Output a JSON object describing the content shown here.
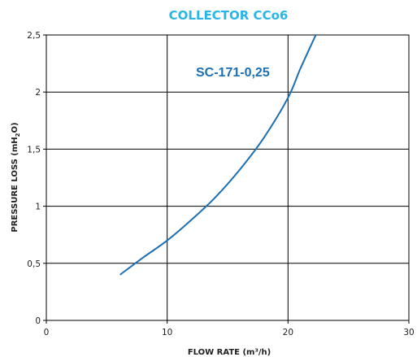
{
  "chart_data": {
    "type": "line",
    "title": "COLLECTOR CCo6",
    "xlabel": "FLOW RATE (m³/h)",
    "ylabel_main": "PRESSURE LOSS (mH",
    "ylabel_sub": "2",
    "ylabel_end": "O)",
    "xlim": [
      0,
      30
    ],
    "ylim": [
      0,
      2.5
    ],
    "x_ticks": [
      0,
      10,
      20,
      30
    ],
    "x_tick_labels": [
      "0",
      "10",
      "20",
      "30"
    ],
    "y_ticks": [
      0,
      0.5,
      1,
      1.5,
      2,
      2.5
    ],
    "y_tick_labels": [
      "0",
      "0,5",
      "1",
      "1,5",
      "2",
      "2,5"
    ],
    "grid": true,
    "colors": {
      "title": "#29b5e8",
      "series": "#1c6fb3",
      "grid": "#000000"
    },
    "series": [
      {
        "name": "SC-171-0,25",
        "x": [
          6.1,
          8,
          10,
          12,
          14,
          16,
          18,
          20,
          21,
          22.3
        ],
        "y": [
          0.4,
          0.55,
          0.7,
          0.88,
          1.08,
          1.32,
          1.6,
          1.95,
          2.2,
          2.5
        ]
      }
    ]
  }
}
